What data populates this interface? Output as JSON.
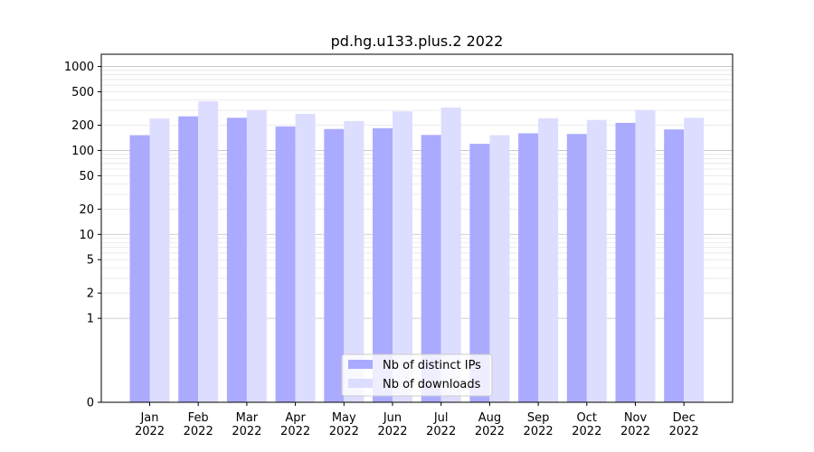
{
  "chart_data": {
    "type": "bar",
    "title": "pd.hg.u133.plus.2 2022",
    "xlabel": "",
    "ylabel": "",
    "yscale": "symlog",
    "ylim": [
      0,
      1400
    ],
    "y_ticks": [
      0,
      1,
      2,
      5,
      10,
      20,
      50,
      100,
      200,
      500,
      1000
    ],
    "y_tick_labels": [
      "0",
      "1",
      "2",
      "5",
      "10",
      "20",
      "50",
      "100",
      "200",
      "500",
      "1000"
    ],
    "categories": [
      "Jan\n2022",
      "Feb\n2022",
      "Mar\n2022",
      "Apr\n2022",
      "May\n2022",
      "Jun\n2022",
      "Jul\n2022",
      "Aug\n2022",
      "Sep\n2022",
      "Oct\n2022",
      "Nov\n2022",
      "Dec\n2022"
    ],
    "series": [
      {
        "name": "Nb of distinct IPs",
        "color": "#aaaaff",
        "values": [
          152,
          255,
          245,
          193,
          180,
          184,
          153,
          120,
          160,
          157,
          213,
          178
        ]
      },
      {
        "name": "Nb of downloads",
        "color": "#ddddff",
        "values": [
          240,
          385,
          303,
          273,
          224,
          292,
          324,
          152,
          242,
          231,
          303,
          245
        ]
      }
    ],
    "legend": "lower-center",
    "grid": true
  }
}
